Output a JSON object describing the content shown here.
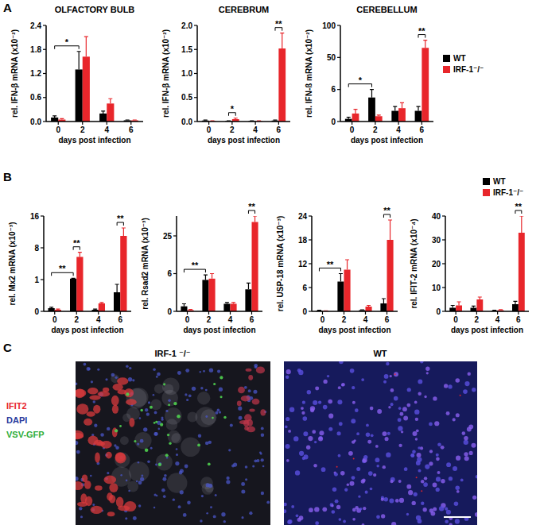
{
  "panel_labels": [
    "A",
    "B",
    "C"
  ],
  "chart_data": [
    {
      "type": "bar",
      "title": "OLFACTORY BULB",
      "x_label": "days post infection",
      "y_label": "rel. IFN-β mRNA (x10⁻²)",
      "categories": [
        "0",
        "2",
        "4",
        "6"
      ],
      "series": [
        {
          "color": "#000000",
          "values": [
            0.1,
            1.3,
            0.2,
            0.03
          ],
          "errors": [
            0.04,
            0.45,
            0.06,
            0.01
          ]
        },
        {
          "color": "#e8262b",
          "values": [
            0.05,
            1.62,
            0.45,
            0.03
          ],
          "errors": [
            0.02,
            0.5,
            0.12,
            0.01
          ]
        }
      ],
      "ylim": [
        0,
        2.4
      ],
      "yticks": [
        {
          "value": 0,
          "label": "0.0"
        },
        0.6,
        1.2,
        1.8,
        2.4
      ],
      "annotations": [
        {
          "text": "*",
          "from": {
            "category": 0,
            "series": 0
          },
          "to": {
            "category": 1,
            "series": 0
          }
        }
      ]
    },
    {
      "type": "bar",
      "title": "CEREBRUM",
      "x_label": "days post infection",
      "y_label": "rel. IFN-β mRNA (x10⁻²)",
      "categories": [
        "0",
        "2",
        "4",
        "6"
      ],
      "series": [
        {
          "color": "#000000",
          "values": [
            0.02,
            0.01,
            0.01,
            0.02
          ],
          "errors": [
            0.01,
            0.005,
            0.005,
            0.01
          ]
        },
        {
          "color": "#e8262b",
          "values": [
            0.01,
            0.05,
            0.01,
            1.52
          ],
          "errors": [
            0.005,
            0.02,
            0.005,
            0.32
          ]
        }
      ],
      "ylim": [
        0,
        2
      ],
      "yticks": [
        {
          "value": 0,
          "label": "0.0"
        },
        0.5,
        {
          "value": 1,
          "label": "1.0"
        },
        1.5,
        {
          "value": 2,
          "label": "2.0"
        }
      ],
      "annotations": [
        {
          "text": "*",
          "from": {
            "category": 1,
            "series": 0
          },
          "to": {
            "category": 1,
            "series": 1
          }
        },
        {
          "text": "**",
          "from": {
            "category": 3,
            "series": 0
          },
          "to": {
            "category": 3,
            "series": 1
          }
        }
      ]
    },
    {
      "type": "bar",
      "title": "CEREBELLUM",
      "x_label": "days post infection",
      "y_label": "rel. IFN-ß mRNA (x10⁻²)",
      "categories": [
        "0",
        "2",
        "4",
        "6"
      ],
      "series": [
        {
          "name": "WT",
          "color": "#000000",
          "values": [
            0.5,
            4.5,
            2,
            2
          ],
          "errors": [
            0.3,
            1.5,
            0.8,
            0.8
          ]
        },
        {
          "name": "IRF-1⁻/⁻",
          "color": "#e8262b",
          "values": [
            1.5,
            1,
            2.5,
            65
          ],
          "errors": [
            0.8,
            0.2,
            1,
            12
          ]
        }
      ],
      "ylim": [
        0,
        100
      ],
      "yticks": [
        0,
        6,
        50,
        100
      ],
      "legend": "right",
      "annotations": [
        {
          "text": "*",
          "from": {
            "category": 0,
            "series": 0
          },
          "to": {
            "category": 1,
            "series": 0
          }
        },
        {
          "text": "**",
          "from": {
            "category": 3,
            "series": 0
          },
          "to": {
            "category": 3,
            "series": 1
          }
        }
      ]
    },
    {
      "type": "bar",
      "x_label": "days post infection",
      "y_label": "rel. Mx2 mRNA (x10⁻³)",
      "categories": [
        "0",
        "2",
        "4",
        "6"
      ],
      "series": [
        {
          "color": "#000000",
          "values": [
            0.1,
            1.2,
            0.05,
            0.6
          ],
          "errors": [
            0.03,
            0.1,
            0.02,
            0.25
          ]
        },
        {
          "color": "#e8262b",
          "values": [
            0.05,
            6,
            0.25,
            11
          ],
          "errors": [
            0.02,
            1,
            0.03,
            2
          ]
        }
      ],
      "ylim": [
        0,
        16
      ],
      "yticks": [
        0,
        1,
        8,
        16
      ],
      "annotations": [
        {
          "text": "**",
          "from": {
            "category": 0,
            "series": 0
          },
          "to": {
            "category": 1,
            "series": 0
          }
        },
        {
          "text": "**",
          "from": {
            "category": 1,
            "series": 0
          },
          "to": {
            "category": 1,
            "series": 1
          }
        },
        {
          "text": "**",
          "from": {
            "category": 3,
            "series": 0
          },
          "to": {
            "category": 3,
            "series": 1
          }
        }
      ]
    },
    {
      "type": "bar",
      "x_label": "days post infection",
      "y_label": "rel. Rsad2 mRNA (x10⁻³)",
      "categories": [
        "0",
        "2",
        "4",
        "6"
      ],
      "series": [
        {
          "color": "#000000",
          "values": [
            0.8,
            5,
            1.2,
            3.5
          ],
          "errors": [
            0.4,
            0.8,
            0.2,
            1
          ]
        },
        {
          "color": "#e8262b",
          "values": [
            0.2,
            5.2,
            1.2,
            32
          ],
          "errors": [
            0.1,
            0.8,
            0.2,
            3
          ]
        }
      ],
      "ylim": [
        0,
        35
      ],
      "yticks": [
        0,
        6,
        25
      ],
      "annotations": [
        {
          "text": "**",
          "from": {
            "category": 0,
            "series": 0
          },
          "to": {
            "category": 1,
            "series": 0
          }
        },
        {
          "text": "**",
          "from": {
            "category": 3,
            "series": 0
          },
          "to": {
            "category": 3,
            "series": 1
          }
        }
      ]
    },
    {
      "type": "bar",
      "x_label": "days post infection",
      "y_label": "rel. USP-18 mRNA (x10⁻³)",
      "categories": [
        "0",
        "2",
        "4",
        "6"
      ],
      "series": [
        {
          "color": "#000000",
          "values": [
            0.2,
            7.5,
            0.3,
            2
          ],
          "errors": [
            0.1,
            2,
            0.1,
            1.2
          ]
        },
        {
          "color": "#e8262b",
          "values": [
            0.1,
            10.5,
            1.2,
            18
          ],
          "errors": [
            0.05,
            2.5,
            0.3,
            5
          ]
        }
      ],
      "ylim": [
        0,
        24
      ],
      "yticks": [
        0,
        6,
        12,
        18,
        24
      ],
      "annotations": [
        {
          "text": "**",
          "from": {
            "category": 0,
            "series": 0
          },
          "to": {
            "category": 1,
            "series": 0
          }
        },
        {
          "text": "**",
          "from": {
            "category": 3,
            "series": 0
          },
          "to": {
            "category": 3,
            "series": 1
          }
        }
      ]
    },
    {
      "type": "bar",
      "x_label": "days post infection",
      "y_label": "rel. IFIT-2 mRNA (x10⁻⁴)",
      "categories": [
        "0",
        "2",
        "4",
        "6"
      ],
      "series": [
        {
          "name": "WT",
          "color": "#000000",
          "values": [
            1.5,
            1.5,
            0.3,
            3
          ],
          "errors": [
            1,
            0.7,
            0.2,
            1.2
          ]
        },
        {
          "name": "IRF-1⁻/⁻",
          "color": "#e8262b",
          "values": [
            2.5,
            5,
            0.5,
            33
          ],
          "errors": [
            1.5,
            1,
            0.2,
            7
          ]
        }
      ],
      "ylim": [
        0,
        40
      ],
      "yticks": [
        0,
        10,
        20,
        30,
        40
      ],
      "legend": "top-right",
      "annotations": [
        {
          "text": "**",
          "from": {
            "category": 3,
            "series": 0
          },
          "to": {
            "category": 3,
            "series": 1
          }
        }
      ]
    }
  ],
  "panel_c": {
    "legend": [
      {
        "name": "IFIT2",
        "color": "#e8262b"
      },
      {
        "name": "DAPI",
        "color": "#2a3a9c"
      },
      {
        "name": "VSV-GFP",
        "color": "#2fae3a"
      }
    ],
    "images": [
      {
        "title": "IRF-1 ⁻/⁻"
      },
      {
        "title": "WT"
      }
    ]
  }
}
